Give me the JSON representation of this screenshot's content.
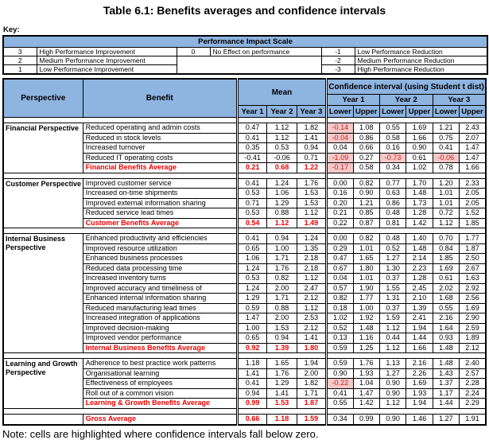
{
  "title": "Table 6.1: Benefits averages and confidence intervals",
  "key": {
    "label": "Key:",
    "scale_title": "Performance Impact Scale",
    "rows": [
      {
        "left_value": "3",
        "left_label": "High Performance Improvement",
        "mid_value": "0",
        "mid_label": "No Effect on performance",
        "right_value": "-1",
        "right_label": "Low Performance Reduction"
      },
      {
        "left_value": "2",
        "left_label": "Medium Performance Improvement",
        "right_value": "-2",
        "right_label": "Medium Performance Reduction"
      },
      {
        "left_value": "1",
        "left_label": "Low Performance Improvement",
        "right_value": "-3",
        "right_label": "High Performance Reduction"
      }
    ]
  },
  "table": {
    "headers": {
      "perspective": "Perspective",
      "benefit": "Benefit",
      "mean": "Mean",
      "ci": "Confidence interval (using Student t dist)",
      "years": [
        "Year 1",
        "Year 2",
        "Year 3"
      ],
      "lower": "Lower",
      "upper": "Upper"
    },
    "groups": [
      {
        "name": "Financial Perspective",
        "rows": [
          {
            "label": "Reduced operating and admin costs",
            "mean": [
              "0.47",
              "1.12",
              "1.82"
            ],
            "ci": [
              "-0.14",
              "1.08",
              "0.55",
              "1.69",
              "1.21",
              "2.43"
            ],
            "hl": [
              0
            ]
          },
          {
            "label": "Reduced in stock levels",
            "mean": [
              "0.41",
              "1.12",
              "1.41"
            ],
            "ci": [
              "-0.04",
              "0.86",
              "0.58",
              "1.66",
              "0.75",
              "2.07"
            ],
            "hl": [
              0
            ]
          },
          {
            "label": "Increased turnover",
            "mean": [
              "0.35",
              "0.53",
              "0.94"
            ],
            "ci": [
              "0.04",
              "0.66",
              "0.16",
              "0.90",
              "0.41",
              "1.47"
            ],
            "hl": []
          },
          {
            "label": "Reduced IT operating costs",
            "mean": [
              "-0.41",
              "-0.06",
              "0.71"
            ],
            "ci": [
              "-1.09",
              "0.27",
              "-0.73",
              "0.61",
              "-0.06",
              "1.47"
            ],
            "hl": [
              0,
              2,
              4
            ]
          },
          {
            "label": "Financial Benefits Average",
            "avg": true,
            "mean": [
              "0.21",
              "0.68",
              "1.22"
            ],
            "ci": [
              "-0.17",
              "0.58",
              "0.34",
              "1.02",
              "0.78",
              "1.66"
            ],
            "hl": [
              0
            ]
          }
        ]
      },
      {
        "name": "Customer Perspective",
        "rows": [
          {
            "label": "Improved customer service",
            "mean": [
              "0.41",
              "1.24",
              "1.76"
            ],
            "ci": [
              "0.00",
              "0.82",
              "0.77",
              "1.70",
              "1.20",
              "2.33"
            ],
            "hl": []
          },
          {
            "label": "Increased on-time shipments",
            "mean": [
              "0.53",
              "1.06",
              "1.53"
            ],
            "ci": [
              "0.16",
              "0.90",
              "0.63",
              "1.48",
              "1.01",
              "2.05"
            ],
            "hl": []
          },
          {
            "label": "Improved external information sharing",
            "mean": [
              "0.71",
              "1.29",
              "1.53"
            ],
            "ci": [
              "0.20",
              "1.21",
              "0.86",
              "1.73",
              "1.01",
              "2.05"
            ],
            "hl": []
          },
          {
            "label": "Reduced service lead times",
            "mean": [
              "0.53",
              "0.88",
              "1.12"
            ],
            "ci": [
              "0.21",
              "0.85",
              "0.48",
              "1.28",
              "0.72",
              "1.52"
            ],
            "hl": []
          },
          {
            "label": "Customer Benefits Average",
            "avg": true,
            "mean": [
              "0.54",
              "1.12",
              "1.49"
            ],
            "ci": [
              "0.22",
              "0.87",
              "0.81",
              "1.42",
              "1.12",
              "1.85"
            ],
            "hl": []
          }
        ]
      },
      {
        "name": "Internal Business Perspective",
        "rows": [
          {
            "label": "Enhanced productivity and efficiencies",
            "mean": [
              "0.41",
              "0.94",
              "1.24"
            ],
            "ci": [
              "0.00",
              "0.82",
              "0.48",
              "1.40",
              "0.70",
              "1.77"
            ],
            "hl": []
          },
          {
            "label": "Improved resource utilization",
            "mean": [
              "0.65",
              "1.00",
              "1.35"
            ],
            "ci": [
              "0.29",
              "1.01",
              "0.52",
              "1.48",
              "0.84",
              "1.87"
            ],
            "hl": []
          },
          {
            "label": "Enhanced business processes",
            "mean": [
              "1.06",
              "1.71",
              "2.18"
            ],
            "ci": [
              "0.47",
              "1.65",
              "1.27",
              "2.14",
              "1.85",
              "2.50"
            ],
            "hl": []
          },
          {
            "label": "Reduced data processing time",
            "mean": [
              "1.24",
              "1.76",
              "2.18"
            ],
            "ci": [
              "0.67",
              "1.80",
              "1.30",
              "2.23",
              "1.69",
              "2.67"
            ],
            "hl": []
          },
          {
            "label": "Increased inventory turns",
            "mean": [
              "0.53",
              "0.82",
              "1.12"
            ],
            "ci": [
              "0.04",
              "1.01",
              "0.37",
              "1.28",
              "0.61",
              "1.63"
            ],
            "hl": []
          },
          {
            "label": "Improved accuracy and timeliness of",
            "mean": [
              "1.24",
              "2.00",
              "2.47"
            ],
            "ci": [
              "0.57",
              "1.90",
              "1.55",
              "2.45",
              "2.02",
              "2.92"
            ],
            "hl": []
          },
          {
            "label": "Enhanced internal information sharing",
            "mean": [
              "1.29",
              "1.71",
              "2.12"
            ],
            "ci": [
              "0.82",
              "1.77",
              "1.31",
              "2.10",
              "1.68",
              "2.56"
            ],
            "hl": []
          },
          {
            "label": "Reduced manufacturing lead times",
            "mean": [
              "0.59",
              "0.88",
              "1.12"
            ],
            "ci": [
              "0.18",
              "1.00",
              "0.37",
              "1.39",
              "0.55",
              "1.69"
            ],
            "hl": []
          },
          {
            "label": "Increased integration of applications",
            "mean": [
              "1.47",
              "2.00",
              "2.53"
            ],
            "ci": [
              "1.02",
              "1.92",
              "1.59",
              "2.41",
              "2.16",
              "2.90"
            ],
            "hl": []
          },
          {
            "label": "Improved decision-making",
            "mean": [
              "1.00",
              "1.53",
              "2.12"
            ],
            "ci": [
              "0.52",
              "1.48",
              "1.12",
              "1.94",
              "1.64",
              "2.59"
            ],
            "hl": []
          },
          {
            "label": "Improved vendor performance",
            "mean": [
              "0.65",
              "0.94",
              "1.41"
            ],
            "ci": [
              "0.13",
              "1.16",
              "0.44",
              "1.44",
              "0.93",
              "1.89"
            ],
            "hl": []
          },
          {
            "label": "Internal Business Benefits Average",
            "avg": true,
            "mean": [
              "0.92",
              "1.39",
              "1.80"
            ],
            "ci": [
              "0.59",
              "1.25",
              "1.12",
              "1.66",
              "1.48",
              "2.12"
            ],
            "hl": []
          }
        ]
      },
      {
        "name": "Learning and Growth Perspective",
        "rows": [
          {
            "label": "Adherence to best practice work patterns",
            "mean": [
              "1.18",
              "1.65",
              "1.94"
            ],
            "ci": [
              "0.59",
              "1.76",
              "1.13",
              "2.16",
              "1.48",
              "2.40"
            ],
            "hl": []
          },
          {
            "label": "Organisational learning",
            "mean": [
              "1.41",
              "1.76",
              "2.00"
            ],
            "ci": [
              "0.90",
              "1.93",
              "1.27",
              "2.26",
              "1.43",
              "2.57"
            ],
            "hl": []
          },
          {
            "label": "Effectiveness of employees",
            "mean": [
              "0.41",
              "1.29",
              "1.82"
            ],
            "ci": [
              "-0.22",
              "1.04",
              "0.90",
              "1.69",
              "1.37",
              "2.28"
            ],
            "hl": [
              0
            ]
          },
          {
            "label": "Roll out of a common vision",
            "mean": [
              "0.94",
              "1.41",
              "1.71"
            ],
            "ci": [
              "0.41",
              "1.47",
              "0.90",
              "1.93",
              "1.17",
              "2.24"
            ],
            "hl": []
          },
          {
            "label": "Learning & Growth Benefits Average",
            "avg": true,
            "mean": [
              "0.99",
              "1.53",
              "1.87"
            ],
            "ci": [
              "0.55",
              "1.42",
              "1.12",
              "1.94",
              "1.44",
              "2.29"
            ],
            "hl": []
          }
        ]
      },
      {
        "name": "",
        "rows": [
          {
            "label": "Gross Average",
            "avg": true,
            "mean": [
              "0.66",
              "1.18",
              "1.59"
            ],
            "ci": [
              "0.34",
              "0.99",
              "0.90",
              "1.46",
              "1.27",
              "1.91"
            ],
            "hl": []
          }
        ]
      }
    ]
  },
  "note": "Note: cells are highlighted where confidence intervals fall below zero.",
  "colors": {
    "header_blue": "#8EB4E0",
    "highlight_pink": "#F6C9C9",
    "highlight_text_red": "#CC2222",
    "average_red": "#EE0000"
  }
}
